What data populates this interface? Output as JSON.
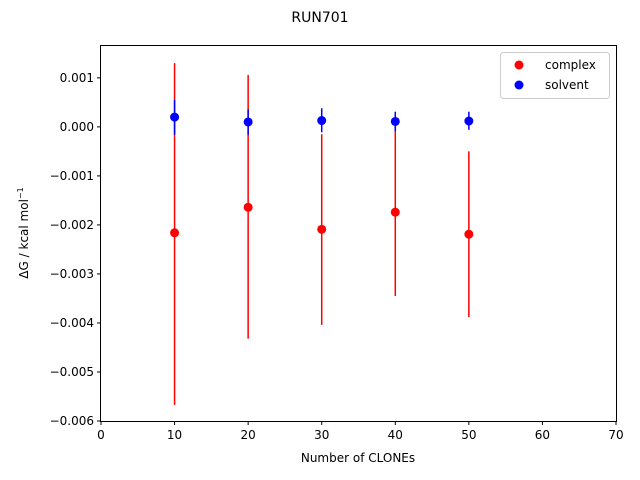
{
  "chart_data": {
    "type": "scatter",
    "title": "RUN701",
    "xlabel": "Number of CLONEs",
    "ylabel": "ΔG / kcal mol",
    "ylabel_superscript": "−1",
    "xlim": [
      0,
      70
    ],
    "ylim": [
      -0.006,
      0.00165
    ],
    "x_ticks": [
      0,
      10,
      20,
      30,
      40,
      50,
      60,
      70
    ],
    "x_tick_labels": [
      "0",
      "10",
      "20",
      "30",
      "40",
      "50",
      "60",
      "70"
    ],
    "y_ticks": [
      0.001,
      0.0,
      -0.001,
      -0.002,
      -0.003,
      -0.004,
      -0.005,
      -0.006
    ],
    "y_tick_labels": [
      "0.001",
      "0.000",
      "−0.001",
      "−0.002",
      "−0.003",
      "−0.004",
      "−0.005",
      "−0.006"
    ],
    "grid": false,
    "legend_position": "top-right",
    "series": [
      {
        "name": "complex",
        "color": "#ff0000",
        "x": [
          10,
          20,
          30,
          40,
          50
        ],
        "y": [
          -0.00216,
          -0.00164,
          -0.00209,
          -0.00174,
          -0.00219
        ],
        "y_low": [
          -0.00567,
          -0.00432,
          -0.00404,
          -0.00345,
          -0.00388
        ],
        "y_high": [
          0.0013,
          0.00106,
          -0.00015,
          2e-05,
          -0.0005
        ]
      },
      {
        "name": "solvent",
        "color": "#0000ff",
        "x": [
          10,
          20,
          30,
          40,
          50
        ],
        "y": [
          0.0002,
          0.0001,
          0.00013,
          0.00011,
          0.00012
        ],
        "y_low": [
          -0.00016,
          -0.00016,
          -0.00011,
          -9e-05,
          -6e-05
        ],
        "y_high": [
          0.00055,
          0.00036,
          0.00038,
          0.00031,
          0.00031
        ]
      }
    ]
  }
}
